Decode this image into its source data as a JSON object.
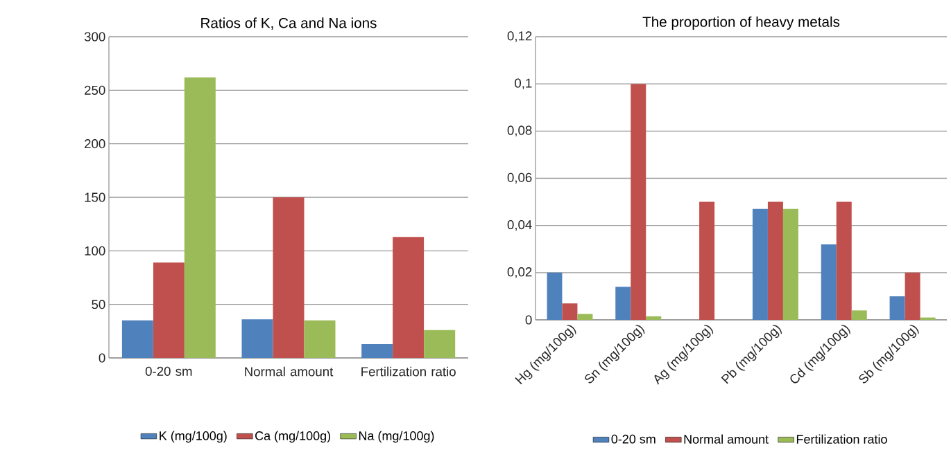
{
  "chart_data": [
    {
      "type": "bar",
      "title": "Ratios of K, Ca and Na ions",
      "categories": [
        "0-20 sm",
        "Normal amount",
        "Fertilization ratio"
      ],
      "series": [
        {
          "name": "K (mg/100g)",
          "color": "#4f81bd",
          "values": [
            35,
            36,
            13
          ]
        },
        {
          "name": "Ca (mg/100g)",
          "color": "#c0504d",
          "values": [
            89,
            150,
            113
          ]
        },
        {
          "name": "Na (mg/100g)",
          "color": "#9bbb59",
          "values": [
            262,
            35,
            26
          ]
        }
      ],
      "ylim": [
        0,
        300
      ],
      "yticks": [
        0,
        50,
        100,
        150,
        200,
        250,
        300
      ],
      "grid": "y",
      "legend": "bottom"
    },
    {
      "type": "bar",
      "title": "The proportion of heavy metals",
      "categories": [
        "Hg (mg/100g)",
        "Sn (mg/100g)",
        "Ag (mg/100g)",
        "Pb (mg/100g)",
        "Cd (mg/100g)",
        "Sb (mg/100g)"
      ],
      "series": [
        {
          "name": "0-20 sm",
          "color": "#4f81bd",
          "values": [
            0.02,
            0.014,
            null,
            0.047,
            0.032,
            0.01
          ]
        },
        {
          "name": "Normal amount",
          "color": "#c0504d",
          "values": [
            0.007,
            0.1,
            0.05,
            0.05,
            0.05,
            0.02
          ]
        },
        {
          "name": "Fertilization ratio",
          "color": "#9bbb59",
          "values": [
            0.0025,
            0.0015,
            null,
            0.047,
            0.004,
            0.001
          ]
        }
      ],
      "ylim": [
        0,
        0.12
      ],
      "yticks": [
        0,
        {
          "value": 0.02,
          "label": "0,02"
        },
        {
          "value": 0.04,
          "label": "0,04"
        },
        {
          "value": 0.06,
          "label": "0,06"
        },
        {
          "value": 0.08,
          "label": "0,08"
        },
        {
          "value": 0.1,
          "label": "0,1"
        },
        {
          "value": 0.12,
          "label": "0,12"
        }
      ],
      "grid": "y",
      "legend": "bottom"
    }
  ]
}
